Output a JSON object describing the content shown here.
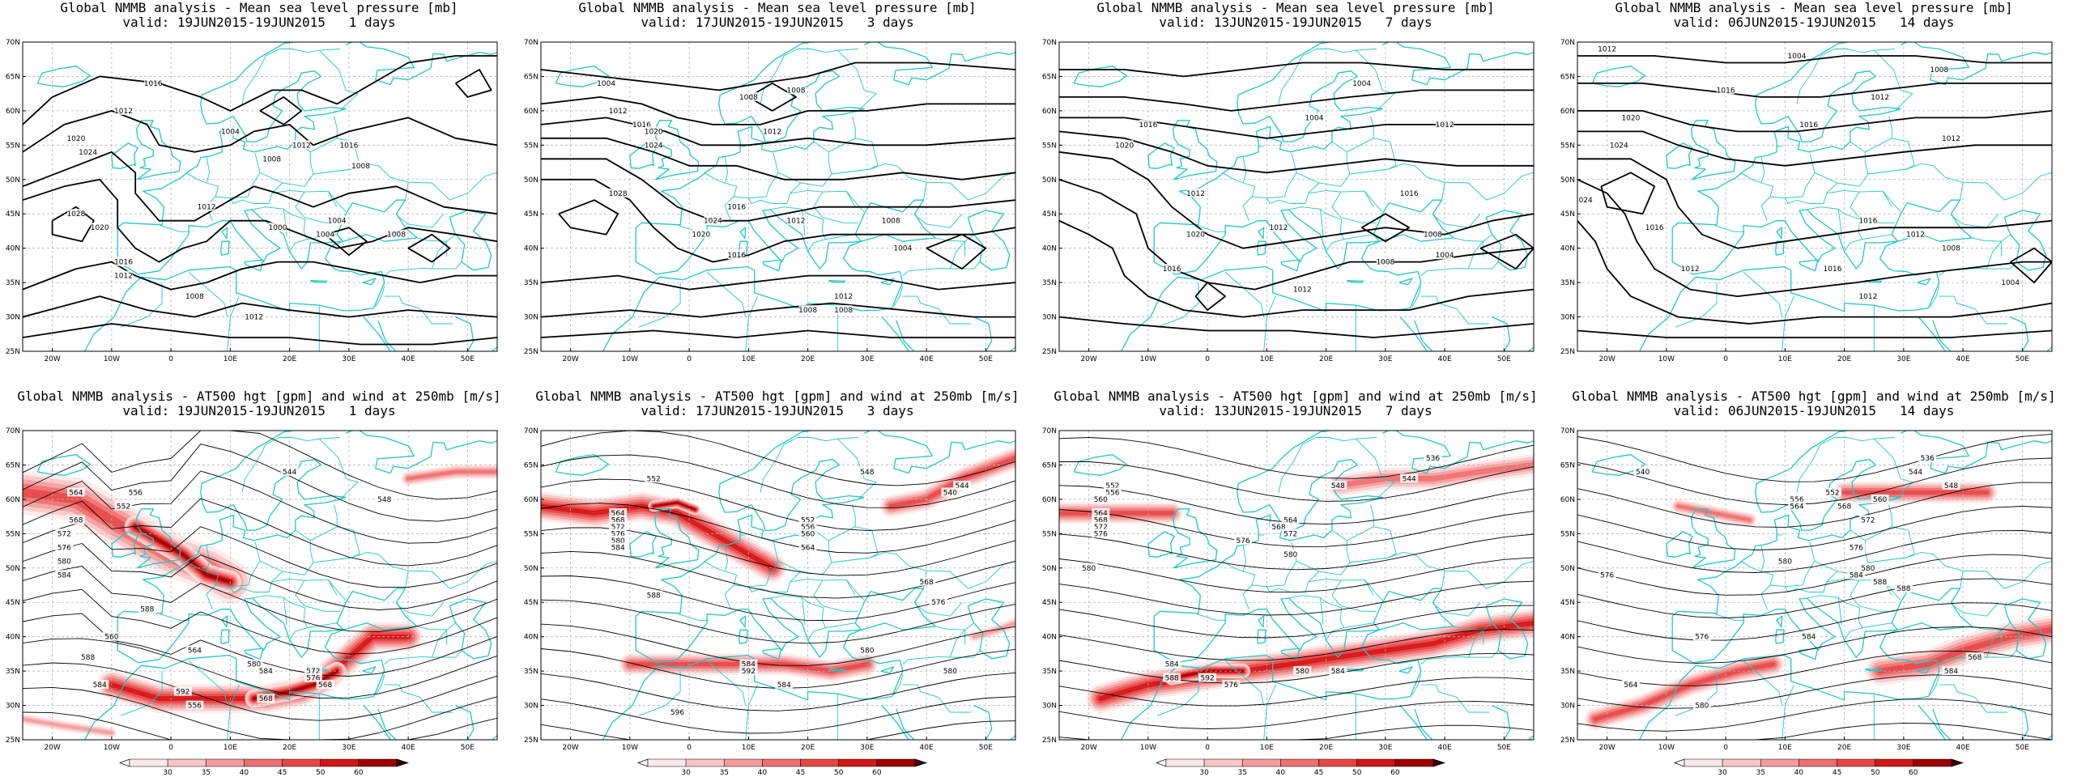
{
  "colors": {
    "coast": "#1fc8c8",
    "contour": "#000000",
    "grid": "#b4b4b4",
    "jet_scale": [
      "#fde9e9",
      "#f9c6c6",
      "#f49c9c",
      "#ef7070",
      "#e84646",
      "#d41515",
      "#9e0000"
    ]
  },
  "axes": {
    "x_ticks": [
      "20W",
      "10W",
      "0",
      "10E",
      "20E",
      "30E",
      "40E",
      "50E"
    ],
    "y_ticks": [
      "70N",
      "65N",
      "60N",
      "55N",
      "50N",
      "45N",
      "40N",
      "35N",
      "30N",
      "25N"
    ]
  },
  "colorbar": {
    "ticks": [
      "30",
      "35",
      "40",
      "45",
      "50",
      "60"
    ]
  },
  "chart_data": [
    {
      "type": "contour",
      "panel": "top-1",
      "title": "Global NMMB analysis - Mean sea level pressure [mb]",
      "valid": "valid: 19JUN2015-19JUN2015   1 days",
      "contour_labels": [
        "1016",
        "1012",
        "1020",
        "1024",
        "1004",
        "1008",
        "1012",
        "1016",
        "1008",
        "1028",
        "1012",
        "1020",
        "1004",
        "1000",
        "1004",
        "1008",
        "1016",
        "1012",
        "1008",
        "1012"
      ]
    },
    {
      "type": "contour",
      "panel": "top-2",
      "title": "Global NMMB analysis - Mean sea level pressure [mb]",
      "valid": "valid: 17JUN2015-19JUN2015   3 days",
      "contour_labels": [
        "1004",
        "1008",
        "1008",
        "1012",
        "1016",
        "1020",
        "1024",
        "1012",
        "1028",
        "1016",
        "1024",
        "1020",
        "1012",
        "1008",
        "1008",
        "1004",
        "1016",
        "1012",
        "1008"
      ]
    },
    {
      "type": "contour",
      "panel": "top-3",
      "title": "Global NMMB analysis - Mean sea level pressure [mb]",
      "valid": "valid: 13JUN2015-19JUN2015   7 days",
      "contour_labels": [
        "1004",
        "1016",
        "1004",
        "1012",
        "1020",
        "1012",
        "1020",
        "1012",
        "1016",
        "1008",
        "1004",
        "1016",
        "1008",
        "1012"
      ]
    },
    {
      "type": "contour",
      "panel": "top-4",
      "title": "Global NMMB analysis - Mean sea level pressure [mb]",
      "valid": "valid: 06JUN2015-19JUN2015   14 days",
      "contour_labels": [
        "1012",
        "1004",
        "1008",
        "1016",
        "1012",
        "1020",
        "1016",
        "1024",
        "1012",
        "1024",
        "1016",
        "1016",
        "1012",
        "1008",
        "1012",
        "1016",
        "1004",
        "1012"
      ]
    },
    {
      "type": "contour",
      "panel": "bottom-1",
      "title": "Global NMMB analysis - AT500 hgt [gpm] and wind at 250mb [m/s]",
      "valid": "valid: 19JUN2015-19JUN2015   1 days",
      "contour_labels": [
        "544",
        "556",
        "564",
        "548",
        "568",
        "572",
        "552",
        "576",
        "580",
        "584",
        "588",
        "560",
        "564",
        "588",
        "580",
        "584",
        "572",
        "576",
        "568",
        "584",
        "568",
        "592",
        "556"
      ]
    },
    {
      "type": "contour",
      "panel": "bottom-2",
      "title": "Global NMMB analysis - AT500 hgt [gpm] and wind at 250mb [m/s]",
      "valid": "valid: 17JUN2015-19JUN2015   3 days",
      "contour_labels": [
        "552",
        "548",
        "544",
        "540",
        "564",
        "568",
        "572",
        "576",
        "580",
        "584",
        "552",
        "556",
        "560",
        "564",
        "568",
        "576",
        "588",
        "580",
        "584",
        "592",
        "596",
        "580",
        "584"
      ]
    },
    {
      "type": "contour",
      "panel": "bottom-3",
      "title": "Global NMMB analysis - AT500 hgt [gpm] and wind at 250mb [m/s]",
      "valid": "valid: 13JUN2015-19JUN2015   7 days",
      "contour_labels": [
        "536",
        "544",
        "548",
        "552",
        "556",
        "560",
        "564",
        "568",
        "572",
        "576",
        "580",
        "564",
        "568",
        "572",
        "576",
        "580",
        "584",
        "588",
        "592",
        "576",
        "580",
        "584"
      ]
    },
    {
      "type": "contour",
      "panel": "bottom-4",
      "title": "Global NMMB analysis - AT500 hgt [gpm] and wind at 250mb [m/s]",
      "valid": "valid: 06JUN2015-19JUN2015   14 days",
      "contour_labels": [
        "536",
        "540",
        "544",
        "548",
        "552",
        "556",
        "560",
        "564",
        "568",
        "572",
        "576",
        "580",
        "584",
        "588",
        "576",
        "580",
        "588",
        "584",
        "576",
        "584",
        "568",
        "580",
        "564"
      ]
    }
  ]
}
